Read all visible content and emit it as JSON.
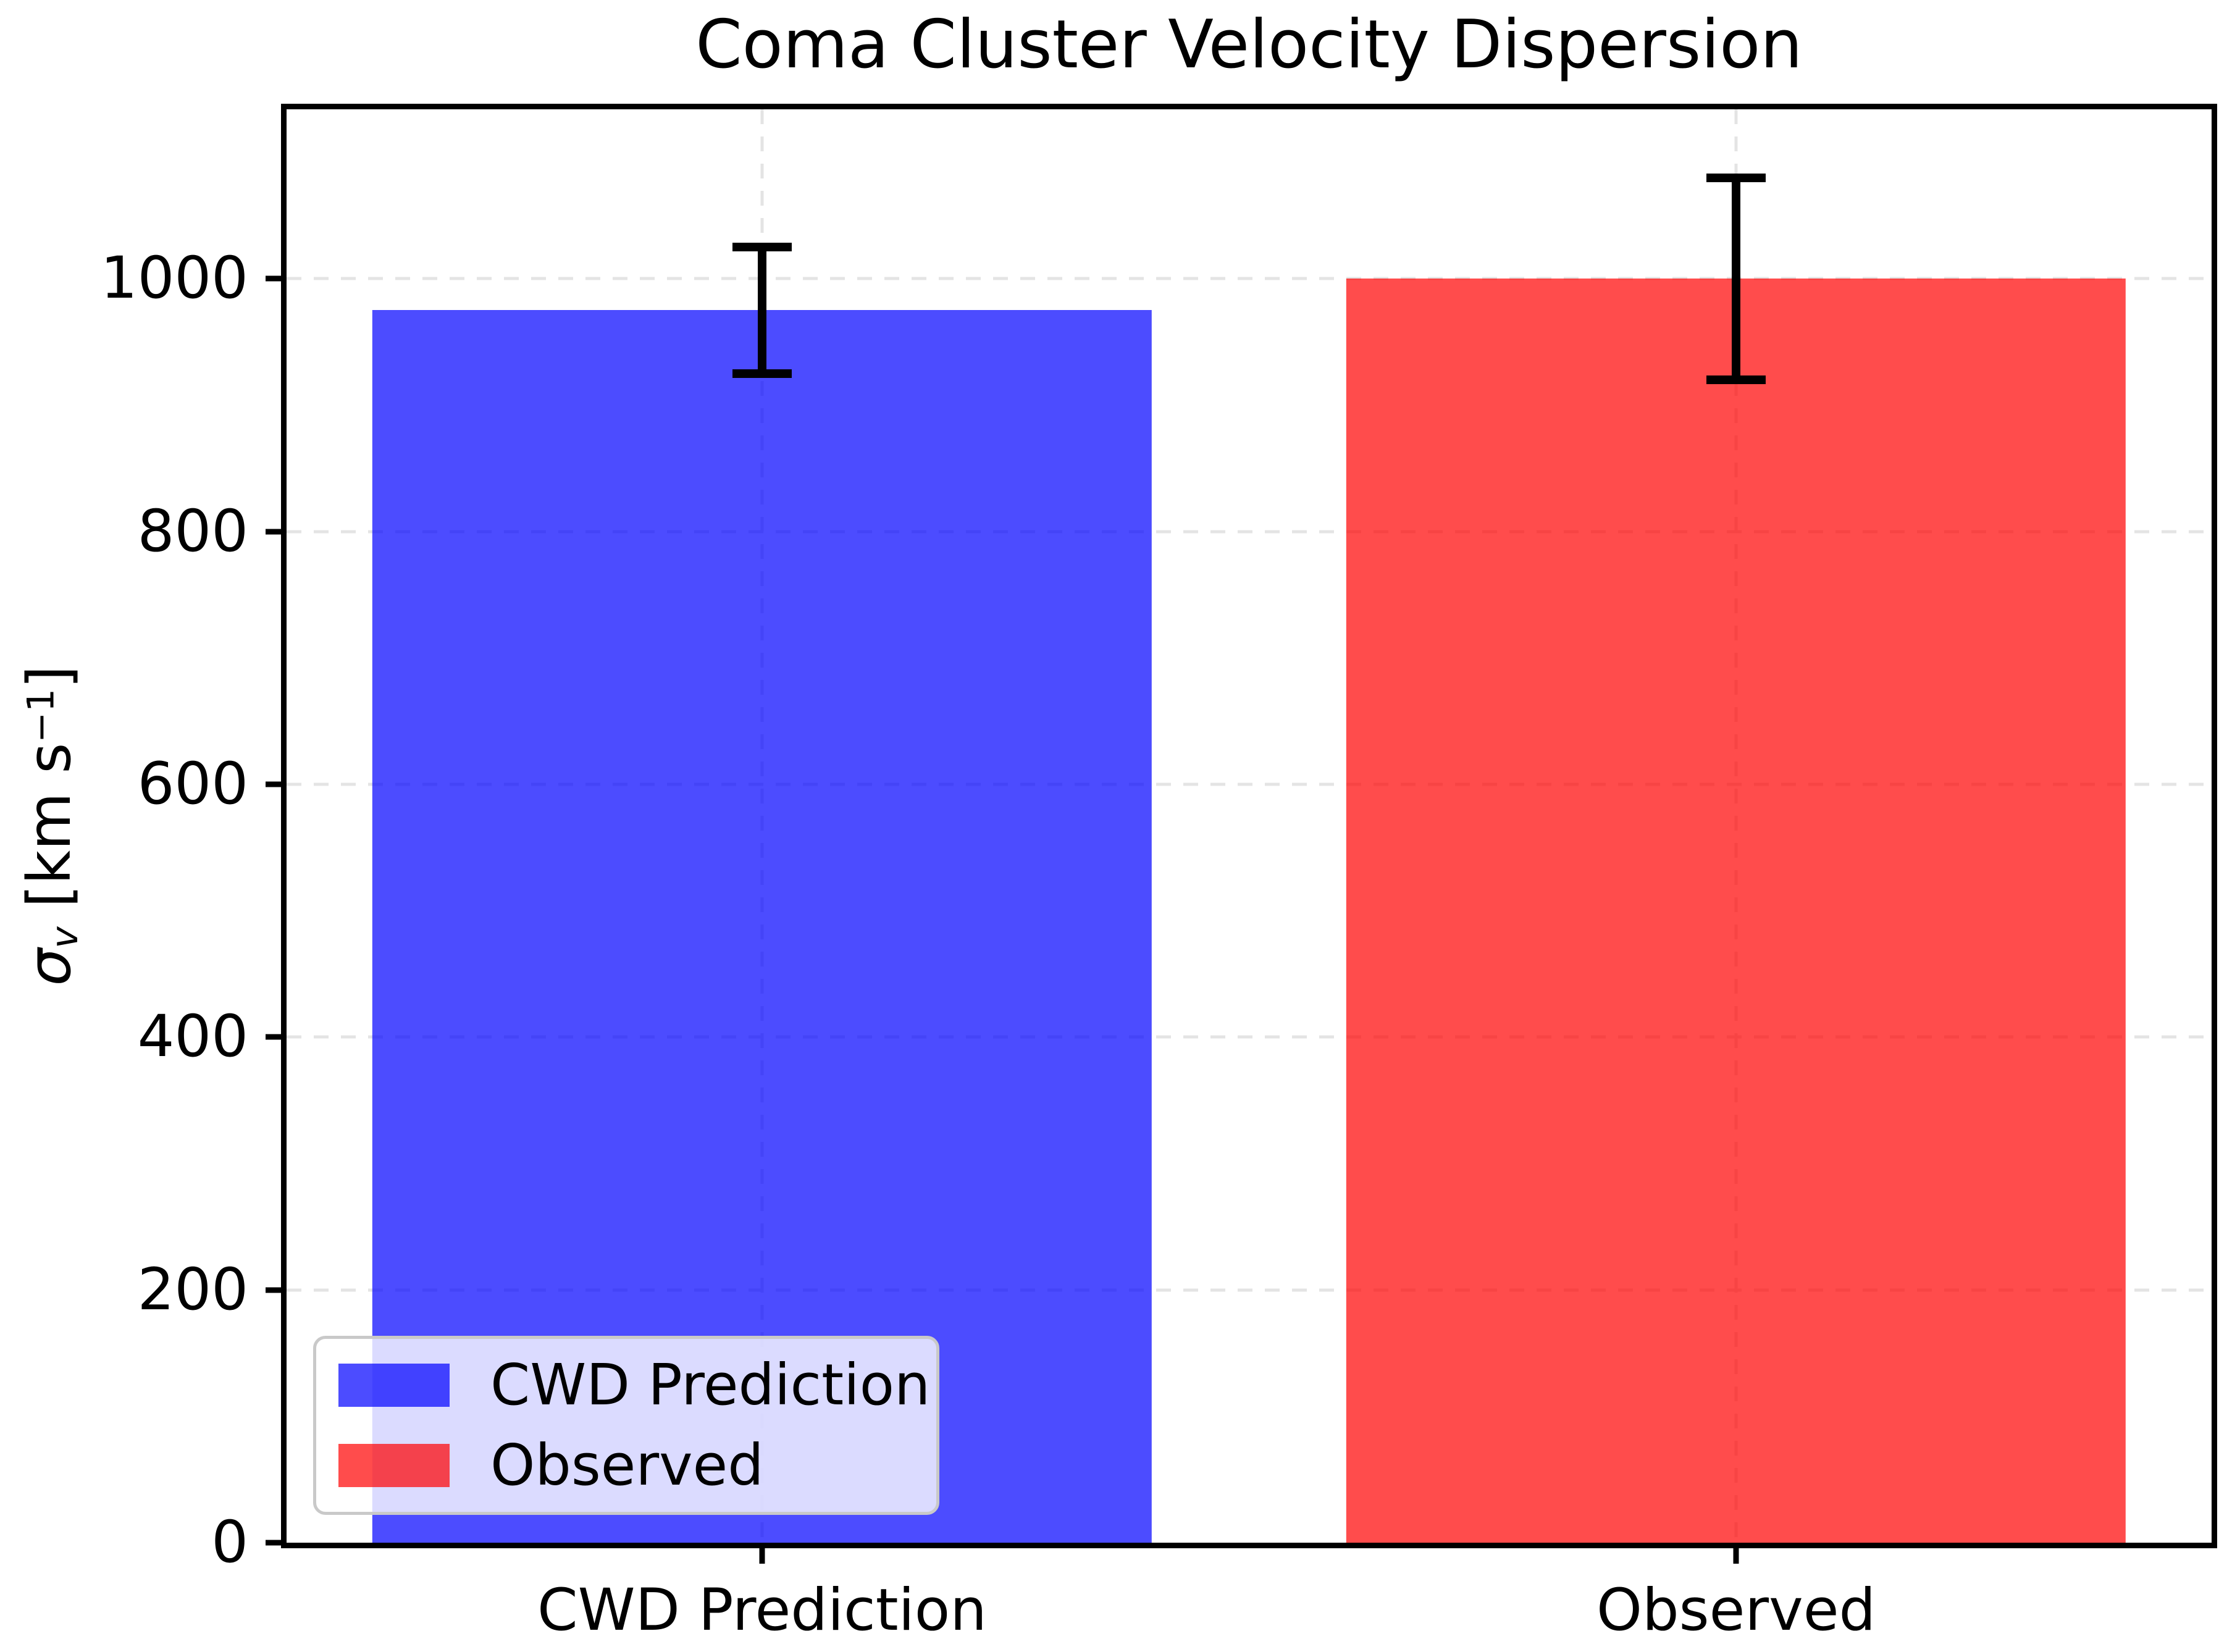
{
  "chart_data": {
    "type": "bar",
    "title": "Coma Cluster Velocity Dispersion",
    "ylabel": {
      "plain": "σ_v [km s^−1]",
      "sigma": "σ",
      "sigma_sub": "v",
      "unit_prefix": " [km s",
      "unit_exp": "−1",
      "unit_suffix": "]"
    },
    "categories": [
      "CWD Prediction",
      "Observed"
    ],
    "series": [
      {
        "name": "CWD Prediction",
        "value": 975,
        "error": 50,
        "color": "rgba(0,0,255,0.7)"
      },
      {
        "name": "Observed",
        "value": 1000,
        "error": 80,
        "color": "rgba(255,0,0,0.7)"
      }
    ],
    "ylim": [
      0,
      1134
    ],
    "yticks": [
      0,
      200,
      400,
      600,
      800,
      1000
    ],
    "grid": {
      "show": true,
      "style": "dashed",
      "color": "#e4e4e4",
      "axes": "both"
    },
    "errorbar_color": "#000000",
    "legend": {
      "position": "lower left",
      "items": [
        {
          "label": "CWD Prediction",
          "color": "rgba(0,0,255,0.7)"
        },
        {
          "label": "Observed",
          "color": "rgba(255,0,0,0.7)"
        }
      ]
    },
    "layout_hints": {
      "bar_centers_pct": [
        24.7,
        75.3
      ],
      "bar_width_pct": 40.5,
      "background": "#ffffff",
      "spine_color": "#000000"
    }
  }
}
